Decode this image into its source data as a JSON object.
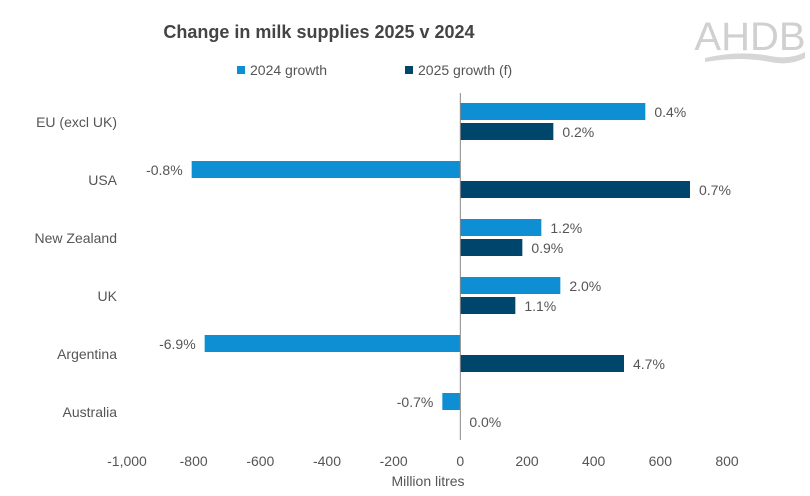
{
  "logo_text": "AHDB",
  "chart_data": {
    "type": "bar",
    "orientation": "horizontal",
    "title": "Change in milk supplies 2025 v 2024",
    "xlabel": "Million litres",
    "ylabel": "",
    "xlim": [
      -1000,
      800
    ],
    "xticks": [
      -1000,
      -800,
      -600,
      -400,
      -200,
      0,
      200,
      400,
      600,
      800
    ],
    "xtick_labels": [
      "-1,000",
      "-800",
      "-600",
      "-400",
      "-200",
      "0",
      "200",
      "400",
      "600",
      "800"
    ],
    "grid": false,
    "legend_position": "top",
    "categories": [
      "EU (excl UK)",
      "USA",
      "New Zealand",
      "UK",
      "Argentina",
      "Australia"
    ],
    "series": [
      {
        "name": "2024 growth",
        "color": "#0e8fd4",
        "values": [
          555,
          -806,
          243,
          300,
          -767,
          -54
        ],
        "labels": [
          "0.4%",
          "-0.8%",
          "1.2%",
          "2.0%",
          "-6.9%",
          "-0.7%"
        ]
      },
      {
        "name": "2025 growth (f)",
        "color": "#00456b",
        "values": [
          279,
          689,
          186,
          165,
          491,
          0
        ],
        "labels": [
          "0.2%",
          "0.7%",
          "0.9%",
          "1.1%",
          "4.7%",
          "0.0%"
        ]
      }
    ]
  }
}
